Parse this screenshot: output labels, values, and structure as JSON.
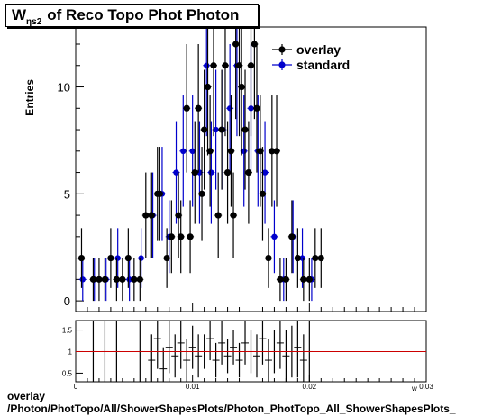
{
  "title": {
    "symbol": "W",
    "subscript": "ηs2",
    "text": "of Reco Topo Phot Photon"
  },
  "footer": {
    "line1": "overlay",
    "line2": "/Photon/PhotTopo/All/ShowerShapesPlots/Photon_PhotTopo_All_ShowerShapesPlots_"
  },
  "colors": {
    "overlay": "#000000",
    "standard": "#0000cc",
    "ratio_line": "#cc0000"
  },
  "chart_data": [
    {
      "type": "scatter",
      "ylabel": "Entries",
      "xlim": [
        0.0,
        0.03
      ],
      "ylim": [
        -0.5,
        12.8
      ],
      "y_ticks": [
        0,
        5,
        10
      ],
      "legend": {
        "position": "top-right",
        "entries": [
          "overlay",
          "standard"
        ]
      },
      "series": [
        {
          "name": "overlay",
          "x": [
            0.0005,
            0.0015,
            0.002,
            0.0025,
            0.003,
            0.0035,
            0.004,
            0.0045,
            0.005,
            0.0055,
            0.006,
            0.0065,
            0.007,
            0.0072,
            0.0078,
            0.0082,
            0.0088,
            0.009,
            0.0095,
            0.0098,
            0.0102,
            0.0105,
            0.0108,
            0.011,
            0.0113,
            0.0115,
            0.0118,
            0.0122,
            0.0125,
            0.0128,
            0.013,
            0.0133,
            0.0135,
            0.0137,
            0.014,
            0.0142,
            0.0145,
            0.0148,
            0.015,
            0.0153,
            0.0155,
            0.0158,
            0.016,
            0.0165,
            0.0168,
            0.0172,
            0.0175,
            0.018,
            0.0185,
            0.019,
            0.0195,
            0.02,
            0.0205,
            0.021
          ],
          "y": [
            2,
            1,
            1,
            1,
            2,
            1,
            1,
            2,
            1,
            1,
            4,
            4,
            5,
            5,
            2,
            3,
            4,
            3,
            9,
            3,
            6,
            9,
            5,
            8,
            10,
            7,
            11,
            4,
            8,
            11,
            6,
            7,
            4,
            12,
            11,
            10,
            8,
            6,
            11,
            12,
            9,
            7,
            5,
            2,
            7,
            7,
            1,
            1,
            3,
            2,
            1,
            1,
            2,
            2
          ],
          "yerr": [
            1.4,
            1.0,
            1.0,
            1.0,
            1.4,
            1.0,
            1.0,
            1.4,
            1.0,
            1.0,
            2.0,
            2.0,
            2.2,
            2.2,
            1.4,
            1.7,
            2.0,
            1.7,
            3.0,
            1.7,
            2.4,
            3.0,
            2.2,
            2.8,
            3.2,
            2.6,
            3.3,
            2.0,
            2.8,
            3.3,
            2.4,
            2.6,
            2.0,
            3.5,
            3.3,
            3.2,
            2.8,
            2.4,
            3.3,
            3.5,
            3.0,
            2.6,
            2.2,
            1.4,
            2.6,
            2.6,
            1.0,
            1.0,
            1.7,
            1.4,
            1.0,
            1.0,
            1.4,
            1.4
          ]
        },
        {
          "name": "standard",
          "x": [
            0.0006,
            0.0016,
            0.0026,
            0.0036,
            0.0046,
            0.0056,
            0.0066,
            0.0074,
            0.008,
            0.0086,
            0.0092,
            0.01,
            0.0106,
            0.0112,
            0.0116,
            0.012,
            0.0126,
            0.0132,
            0.0138,
            0.0144,
            0.015,
            0.0156,
            0.0162,
            0.017,
            0.0178,
            0.0186,
            0.0194,
            0.0202
          ],
          "y": [
            1,
            1,
            1,
            2,
            1,
            2,
            4,
            5,
            3,
            6,
            7,
            7,
            6,
            11,
            6,
            8,
            8,
            9,
            11,
            7,
            9,
            7,
            6,
            3,
            1,
            3,
            2,
            1
          ],
          "yerr": [
            1.0,
            1.0,
            1.0,
            1.4,
            1.0,
            1.4,
            2.0,
            2.2,
            1.7,
            2.4,
            2.6,
            2.6,
            2.4,
            3.3,
            2.4,
            2.8,
            2.8,
            3.0,
            3.3,
            2.6,
            3.0,
            2.6,
            2.4,
            1.7,
            1.0,
            1.7,
            1.4,
            1.0
          ]
        }
      ]
    },
    {
      "type": "scatter",
      "xlim": [
        0.0,
        0.03
      ],
      "ylim": [
        0.3,
        1.72
      ],
      "x_ticks": [
        0,
        0.01,
        0.02,
        0.03
      ],
      "x_tick_labels": [
        "0",
        "0.01",
        "0.02",
        "0.03"
      ],
      "y_ticks": [
        0.5,
        1,
        1.5
      ],
      "y_tick_labels": [
        "0.5",
        "1",
        "1.5"
      ],
      "reference_line": 1.0,
      "series": [
        {
          "x": [
            0.0015,
            0.0025,
            0.0035,
            0.0055,
            0.0065,
            0.007,
            0.0075,
            0.008,
            0.0085,
            0.009,
            0.0095,
            0.01,
            0.0105,
            0.011,
            0.0115,
            0.012,
            0.0125,
            0.013,
            0.0135,
            0.014,
            0.0145,
            0.015,
            0.0155,
            0.016,
            0.0165,
            0.017,
            0.0175,
            0.018,
            0.0185,
            0.019,
            0.0195,
            0.02
          ],
          "y": [
            1.0,
            1.0,
            1.0,
            1.0,
            0.8,
            1.3,
            0.6,
            1.1,
            0.9,
            1.2,
            0.8,
            1.1,
            0.9,
            1.0,
            1.3,
            0.8,
            1.2,
            0.9,
            1.1,
            0.8,
            1.2,
            1.0,
            0.9,
            1.3,
            0.8,
            1.0,
            1.2,
            0.9,
            1.0,
            1.1,
            0.8,
            1.0
          ],
          "yerr": [
            1.0,
            1.0,
            1.0,
            1.0,
            0.6,
            0.7,
            0.5,
            0.6,
            0.5,
            0.6,
            0.5,
            0.5,
            0.5,
            0.4,
            0.5,
            0.4,
            0.5,
            0.4,
            0.4,
            0.4,
            0.5,
            0.5,
            0.5,
            0.6,
            0.5,
            0.5,
            0.6,
            0.6,
            0.6,
            0.7,
            0.6,
            0.7
          ]
        }
      ]
    }
  ]
}
